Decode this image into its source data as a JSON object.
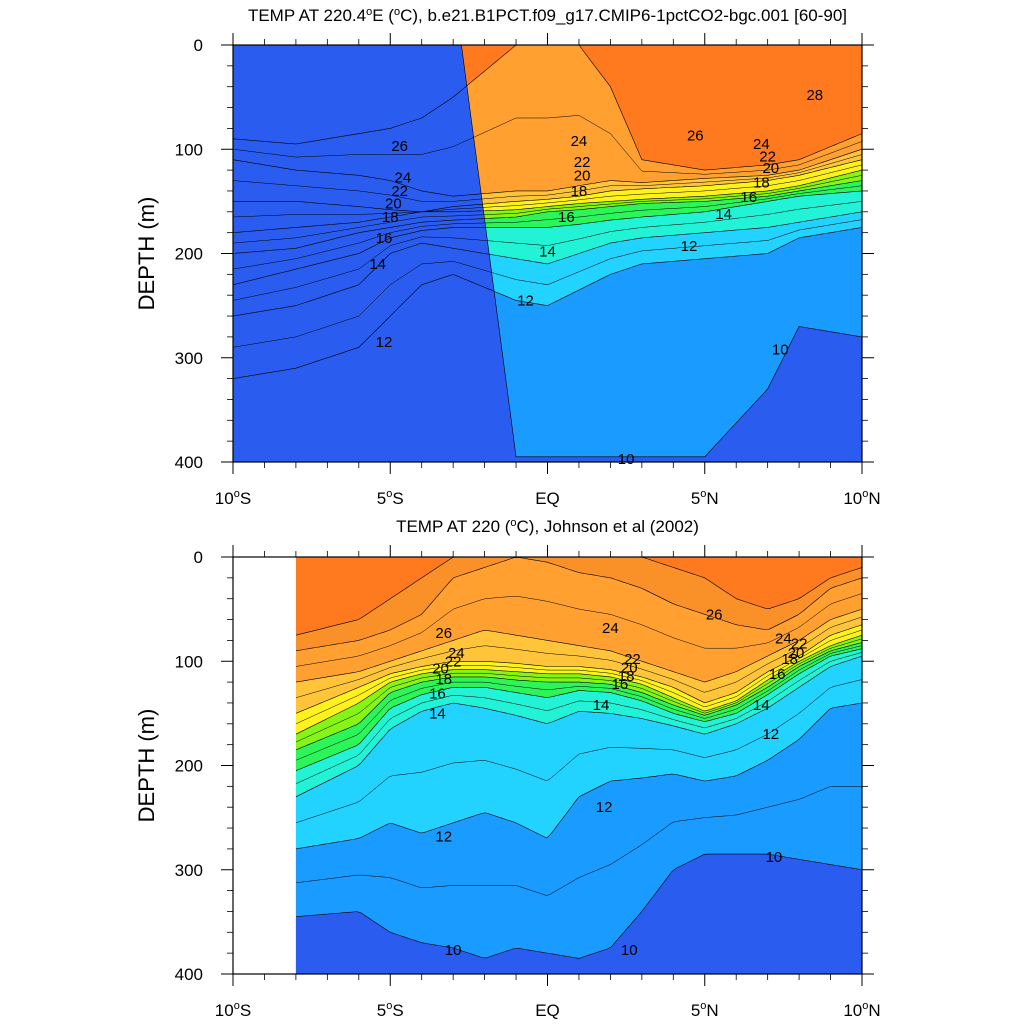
{
  "chart_data": [
    {
      "type": "contour",
      "title": "TEMP AT 220.4°E (°C), b.e21.B1PCT.f09_g17.CMIP6-1pctCO2-bgc.001 [60-90]",
      "title_parts": {
        "pre": "TEMP AT 220.4",
        "deg1": "o",
        "mid": "E (",
        "deg2": "o",
        "post": "C), b.e21.B1PCT.f09_g17.CMIP6-1pctCO2-bgc.001 [60-90]"
      },
      "ylabel": "DEPTH (m)",
      "xlim": [
        -10,
        10
      ],
      "ylim": [
        400,
        0
      ],
      "x_ticks": [
        {
          "value": -10,
          "num": "10",
          "sup": "o",
          "hem": "S"
        },
        {
          "value": -5,
          "num": "5",
          "sup": "o",
          "hem": "S"
        },
        {
          "value": 0,
          "num": "EQ",
          "sup": "",
          "hem": ""
        },
        {
          "value": 5,
          "num": "5",
          "sup": "o",
          "hem": "N"
        },
        {
          "value": 10,
          "num": "10",
          "sup": "o",
          "hem": "N"
        }
      ],
      "y_ticks": [
        "0",
        "100",
        "200",
        "300",
        "400"
      ],
      "data_start_lat": -10,
      "contour_interval": 1,
      "lat_nodes": [
        -10,
        -8,
        -6,
        -5,
        -4,
        -3,
        -1,
        0,
        1,
        2,
        3,
        5,
        7,
        8,
        10
      ],
      "isotherm_depths": {
        "28": [
          null,
          null,
          null,
          null,
          null,
          null,
          null,
          null,
          null,
          null,
          0,
          0,
          0,
          0,
          0
        ],
        "26": [
          90,
          95,
          85,
          80,
          70,
          50,
          0,
          0,
          0,
          40,
          110,
          120,
          115,
          110,
          85
        ],
        "24": [
          110,
          120,
          125,
          130,
          140,
          145,
          140,
          140,
          135,
          130,
          132,
          128,
          125,
          120,
          100
        ],
        "22": [
          150,
          150,
          155,
          158,
          160,
          155,
          150,
          148,
          145,
          140,
          138,
          135,
          130,
          125,
          110
        ],
        "20": [
          180,
          175,
          170,
          165,
          160,
          160,
          158,
          155,
          152,
          150,
          148,
          145,
          140,
          135,
          120
        ],
        "18": [
          200,
          195,
          180,
          175,
          170,
          168,
          165,
          160,
          158,
          155,
          152,
          150,
          145,
          140,
          130
        ],
        "16": [
          230,
          215,
          200,
          185,
          178,
          175,
          175,
          175,
          172,
          168,
          165,
          160,
          150,
          145,
          140
        ],
        "14": [
          260,
          250,
          230,
          200,
          190,
          195,
          205,
          210,
          200,
          190,
          185,
          180,
          175,
          170,
          160
        ],
        "12": [
          320,
          310,
          290,
          260,
          230,
          220,
          245,
          250,
          235,
          220,
          210,
          205,
          200,
          185,
          175
        ],
        "10": [
          null,
          null,
          null,
          null,
          null,
          null,
          395,
          395,
          395,
          395,
          395,
          395,
          330,
          270,
          280
        ]
      },
      "contour_labels": [
        {
          "text": "28",
          "lat": 8.5,
          "depth": 48
        },
        {
          "text": "26",
          "lat": -4.7,
          "depth": 97
        },
        {
          "text": "24",
          "lat": 1.0,
          "depth": 92
        },
        {
          "text": "26",
          "lat": 4.7,
          "depth": 87
        },
        {
          "text": "24",
          "lat": 6.8,
          "depth": 95
        },
        {
          "text": "22",
          "lat": 7.0,
          "depth": 107
        },
        {
          "text": "20",
          "lat": 7.1,
          "depth": 118
        },
        {
          "text": "18",
          "lat": 6.8,
          "depth": 132
        },
        {
          "text": "24",
          "lat": -4.6,
          "depth": 127
        },
        {
          "text": "22",
          "lat": -4.7,
          "depth": 140
        },
        {
          "text": "20",
          "lat": -4.9,
          "depth": 152
        },
        {
          "text": "18",
          "lat": -5.0,
          "depth": 165
        },
        {
          "text": "22",
          "lat": 1.1,
          "depth": 112
        },
        {
          "text": "20",
          "lat": 1.1,
          "depth": 125
        },
        {
          "text": "18",
          "lat": 1.0,
          "depth": 140
        },
        {
          "text": "16",
          "lat": 0.6,
          "depth": 165
        },
        {
          "text": "16",
          "lat": 6.4,
          "depth": 146
        },
        {
          "text": "14",
          "lat": 5.6,
          "depth": 162
        },
        {
          "text": "16",
          "lat": -5.2,
          "depth": 185
        },
        {
          "text": "14",
          "lat": -5.4,
          "depth": 210
        },
        {
          "text": "14",
          "lat": 0.0,
          "depth": 198
        },
        {
          "text": "12",
          "lat": 4.5,
          "depth": 193
        },
        {
          "text": "12",
          "lat": -0.7,
          "depth": 245
        },
        {
          "text": "12",
          "lat": -5.2,
          "depth": 285
        },
        {
          "text": "10",
          "lat": 7.4,
          "depth": 292
        },
        {
          "text": "10",
          "lat": 2.5,
          "depth": 397
        }
      ]
    },
    {
      "type": "contour",
      "title": "TEMP AT 220 (°C), Johnson et al (2002)",
      "title_parts": {
        "pre": "TEMP AT 220 (",
        "deg1": "o",
        "mid": "C), Johnson et al (2002)",
        "deg2": "",
        "post": ""
      },
      "ylabel": "DEPTH (m)",
      "xlim": [
        -10,
        10
      ],
      "ylim": [
        400,
        0
      ],
      "x_ticks": [
        {
          "value": -10,
          "num": "10",
          "sup": "o",
          "hem": "S"
        },
        {
          "value": -5,
          "num": "5",
          "sup": "o",
          "hem": "S"
        },
        {
          "value": 0,
          "num": "EQ",
          "sup": "",
          "hem": ""
        },
        {
          "value": 5,
          "num": "5",
          "sup": "o",
          "hem": "N"
        },
        {
          "value": 10,
          "num": "10",
          "sup": "o",
          "hem": "N"
        }
      ],
      "y_ticks": [
        "0",
        "100",
        "200",
        "300",
        "400"
      ],
      "data_start_lat": -8,
      "contour_interval": 1,
      "lat_nodes": [
        -8,
        -6,
        -5,
        -4,
        -3,
        -2,
        -1,
        0,
        1,
        2,
        3,
        4,
        5,
        6,
        7,
        8,
        9,
        10
      ],
      "isotherm_depths": {
        "27": [
          75,
          60,
          40,
          20,
          0,
          0,
          0,
          0,
          0,
          0,
          0,
          10,
          20,
          40,
          50,
          40,
          20,
          10
        ],
        "26": [
          90,
          80,
          70,
          55,
          20,
          10,
          0,
          5,
          15,
          20,
          30,
          45,
          55,
          65,
          70,
          55,
          30,
          20
        ],
        "24": [
          120,
          110,
          100,
          90,
          80,
          70,
          75,
          80,
          85,
          90,
          100,
          110,
          120,
          110,
          95,
          80,
          60,
          50
        ],
        "22": [
          150,
          125,
          112,
          105,
          100,
          100,
          102,
          105,
          105,
          108,
          115,
          125,
          140,
          130,
          110,
          95,
          75,
          65
        ],
        "20": [
          170,
          140,
          120,
          112,
          108,
          108,
          110,
          112,
          112,
          115,
          122,
          135,
          148,
          138,
          118,
          100,
          85,
          75
        ],
        "18": [
          185,
          160,
          130,
          120,
          115,
          115,
          118,
          120,
          120,
          122,
          130,
          142,
          152,
          142,
          125,
          105,
          90,
          82
        ],
        "16": [
          205,
          180,
          145,
          132,
          125,
          125,
          130,
          135,
          128,
          130,
          138,
          150,
          158,
          150,
          132,
          112,
          95,
          88
        ],
        "14": [
          230,
          200,
          165,
          148,
          140,
          145,
          152,
          160,
          148,
          150,
          155,
          162,
          170,
          160,
          145,
          125,
          105,
          95
        ],
        "12": [
          280,
          270,
          255,
          265,
          255,
          245,
          255,
          270,
          230,
          215,
          212,
          208,
          215,
          210,
          195,
          175,
          145,
          140
        ],
        "10": [
          345,
          340,
          360,
          370,
          375,
          385,
          375,
          380,
          385,
          375,
          340,
          300,
          285,
          285,
          285,
          290,
          295,
          300
        ]
      },
      "contour_labels": [
        {
          "text": "26",
          "lat": -3.3,
          "depth": 73
        },
        {
          "text": "24",
          "lat": -2.9,
          "depth": 92
        },
        {
          "text": "22",
          "lat": -3.0,
          "depth": 100
        },
        {
          "text": "20",
          "lat": -3.4,
          "depth": 107
        },
        {
          "text": "18",
          "lat": -3.3,
          "depth": 117
        },
        {
          "text": "16",
          "lat": -3.5,
          "depth": 131
        },
        {
          "text": "14",
          "lat": -3.5,
          "depth": 150
        },
        {
          "text": "24",
          "lat": 2.0,
          "depth": 68
        },
        {
          "text": "26",
          "lat": 5.3,
          "depth": 55
        },
        {
          "text": "22",
          "lat": 2.7,
          "depth": 98
        },
        {
          "text": "20",
          "lat": 2.6,
          "depth": 106
        },
        {
          "text": "18",
          "lat": 2.5,
          "depth": 114
        },
        {
          "text": "16",
          "lat": 2.3,
          "depth": 122
        },
        {
          "text": "14",
          "lat": 1.7,
          "depth": 142
        },
        {
          "text": "24",
          "lat": 7.5,
          "depth": 78
        },
        {
          "text": "22",
          "lat": 8.0,
          "depth": 83
        },
        {
          "text": "20",
          "lat": 7.9,
          "depth": 92
        },
        {
          "text": "18",
          "lat": 7.7,
          "depth": 98
        },
        {
          "text": "16",
          "lat": 7.3,
          "depth": 112
        },
        {
          "text": "14",
          "lat": 6.8,
          "depth": 142
        },
        {
          "text": "12",
          "lat": 7.1,
          "depth": 170
        },
        {
          "text": "12",
          "lat": 1.8,
          "depth": 240
        },
        {
          "text": "12",
          "lat": -3.3,
          "depth": 268
        },
        {
          "text": "10",
          "lat": 7.2,
          "depth": 288
        },
        {
          "text": "10",
          "lat": -3.0,
          "depth": 377
        },
        {
          "text": "10",
          "lat": 2.6,
          "depth": 377
        }
      ]
    }
  ]
}
